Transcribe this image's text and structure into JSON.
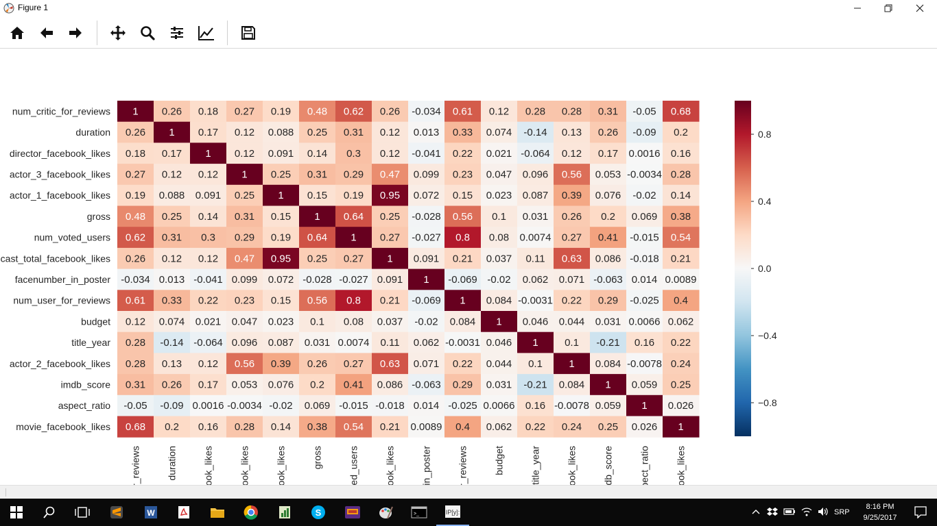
{
  "window": {
    "title": "Figure 1"
  },
  "toolbar": {
    "buttons": [
      "home-icon",
      "back-icon",
      "forward-icon",
      "pan-icon",
      "zoom-icon",
      "configure-icon",
      "edit-curves-icon",
      "save-icon"
    ]
  },
  "taskbar": {
    "clock_time": "8:16 PM",
    "clock_date": "9/25/2017",
    "language": "SRP"
  },
  "chart_data": {
    "type": "heatmap",
    "row_labels": [
      "num_critic_for_reviews",
      "duration",
      "director_facebook_likes",
      "actor_3_facebook_likes",
      "actor_1_facebook_likes",
      "gross",
      "num_voted_users",
      "cast_total_facebook_likes",
      "facenumber_in_poster",
      "num_user_for_reviews",
      "budget",
      "title_year",
      "actor_2_facebook_likes",
      "imdb_score",
      "aspect_ratio",
      "movie_facebook_likes"
    ],
    "col_labels_visible": [
      "r_reviews",
      "duration",
      "ook_likes",
      "ook_likes",
      "ook_likes",
      "gross",
      "ed_users",
      "ook_likes",
      "in_poster",
      "r_reviews",
      "budget",
      "title_year",
      "ook_likes",
      "db_score",
      "spect_ratio",
      "ook_likes"
    ],
    "values": [
      [
        "1",
        "0.26",
        "0.18",
        "0.27",
        "0.19",
        "0.48",
        "0.62",
        "0.26",
        "-0.034",
        "0.61",
        "0.12",
        "0.28",
        "0.28",
        "0.31",
        "-0.05",
        "0.68"
      ],
      [
        "0.26",
        "1",
        "0.17",
        "0.12",
        "0.088",
        "0.25",
        "0.31",
        "0.12",
        "0.013",
        "0.33",
        "0.074",
        "-0.14",
        "0.13",
        "0.26",
        "-0.09",
        "0.2"
      ],
      [
        "0.18",
        "0.17",
        "1",
        "0.12",
        "0.091",
        "0.14",
        "0.3",
        "0.12",
        "-0.041",
        "0.22",
        "0.021",
        "-0.064",
        "0.12",
        "0.17",
        "0.0016",
        "0.16"
      ],
      [
        "0.27",
        "0.12",
        "0.12",
        "1",
        "0.25",
        "0.31",
        "0.29",
        "0.47",
        "0.099",
        "0.23",
        "0.047",
        "0.096",
        "0.56",
        "0.053",
        "-0.0034",
        "0.28"
      ],
      [
        "0.19",
        "0.088",
        "0.091",
        "0.25",
        "1",
        "0.15",
        "0.19",
        "0.95",
        "0.072",
        "0.15",
        "0.023",
        "0.087",
        "0.39",
        "0.076",
        "-0.02",
        "0.14"
      ],
      [
        "0.48",
        "0.25",
        "0.14",
        "0.31",
        "0.15",
        "1",
        "0.64",
        "0.25",
        "-0.028",
        "0.56",
        "0.1",
        "0.031",
        "0.26",
        "0.2",
        "0.069",
        "0.38"
      ],
      [
        "0.62",
        "0.31",
        "0.3",
        "0.29",
        "0.19",
        "0.64",
        "1",
        "0.27",
        "-0.027",
        "0.8",
        "0.08",
        "0.0074",
        "0.27",
        "0.41",
        "-0.015",
        "0.54"
      ],
      [
        "0.26",
        "0.12",
        "0.12",
        "0.47",
        "0.95",
        "0.25",
        "0.27",
        "1",
        "0.091",
        "0.21",
        "0.037",
        "0.11",
        "0.63",
        "0.086",
        "-0.018",
        "0.21"
      ],
      [
        "-0.034",
        "0.013",
        "-0.041",
        "0.099",
        "0.072",
        "-0.028",
        "-0.027",
        "0.091",
        "1",
        "-0.069",
        "-0.02",
        "0.062",
        "0.071",
        "-0.063",
        "0.014",
        "0.0089"
      ],
      [
        "0.61",
        "0.33",
        "0.22",
        "0.23",
        "0.15",
        "0.56",
        "0.8",
        "0.21",
        "-0.069",
        "1",
        "0.084",
        "-0.0031",
        "0.22",
        "0.29",
        "-0.025",
        "0.4"
      ],
      [
        "0.12",
        "0.074",
        "0.021",
        "0.047",
        "0.023",
        "0.1",
        "0.08",
        "0.037",
        "-0.02",
        "0.084",
        "1",
        "0.046",
        "0.044",
        "0.031",
        "0.0066",
        "0.062"
      ],
      [
        "0.28",
        "-0.14",
        "-0.064",
        "0.096",
        "0.087",
        "0.031",
        "0.0074",
        "0.11",
        "0.062",
        "-0.0031",
        "0.046",
        "1",
        "0.1",
        "-0.21",
        "0.16",
        "0.22"
      ],
      [
        "0.28",
        "0.13",
        "0.12",
        "0.56",
        "0.39",
        "0.26",
        "0.27",
        "0.63",
        "0.071",
        "0.22",
        "0.044",
        "0.1",
        "1",
        "0.084",
        "-0.0078",
        "0.24"
      ],
      [
        "0.31",
        "0.26",
        "0.17",
        "0.053",
        "0.076",
        "0.2",
        "0.41",
        "0.086",
        "-0.063",
        "0.29",
        "0.031",
        "-0.21",
        "0.084",
        "1",
        "0.059",
        "0.25"
      ],
      [
        "-0.05",
        "-0.09",
        "0.0016",
        "-0.0034",
        "-0.02",
        "0.069",
        "-0.015",
        "-0.018",
        "0.014",
        "-0.025",
        "0.0066",
        "0.16",
        "-0.0078",
        "0.059",
        "1",
        "0.026"
      ],
      [
        "0.68",
        "0.2",
        "0.16",
        "0.28",
        "0.14",
        "0.38",
        "0.54",
        "0.21",
        "0.0089",
        "0.4",
        "0.062",
        "0.22",
        "0.24",
        "0.25",
        "0.026",
        "1"
      ]
    ],
    "colormap": "RdBu_r",
    "vmin": -1,
    "vmax": 1,
    "colorbar_ticks": [
      "0.8",
      "0.4",
      "0.0",
      "−0.4",
      "−0.8"
    ],
    "colorbar_tick_values": [
      0.8,
      0.4,
      0.0,
      -0.4,
      -0.8
    ]
  }
}
